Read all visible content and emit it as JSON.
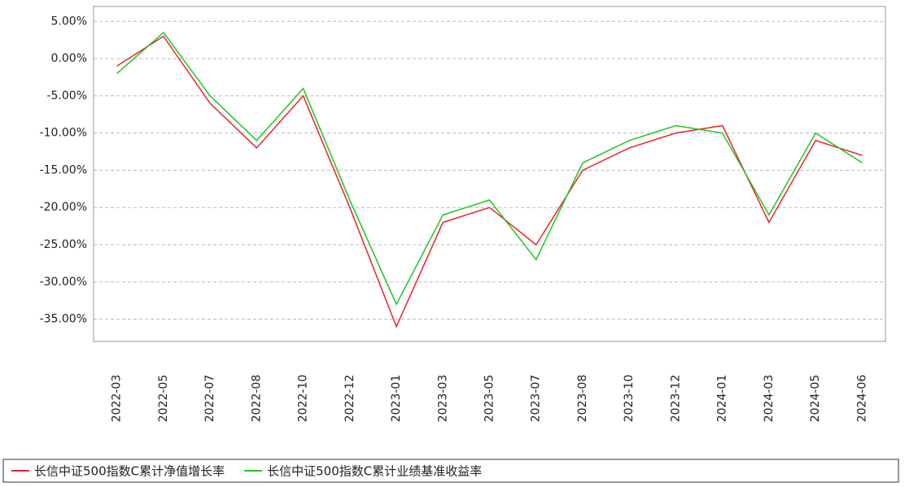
{
  "chart_data": {
    "type": "line",
    "categories": [
      "2022-03",
      "2022-05",
      "2022-07",
      "2022-08",
      "2022-10",
      "2022-12",
      "2023-01",
      "2023-03",
      "2023-05",
      "2023-07",
      "2023-08",
      "2023-10",
      "2023-12",
      "2024-01",
      "2024-03",
      "2024-05",
      "2024-06"
    ],
    "series": [
      {
        "name": "长信中证500指数C累计净值增长率",
        "color": "#e8262b",
        "values": [
          -1,
          3,
          -6,
          -12,
          -5,
          -20,
          -36,
          -22,
          -20,
          -25,
          -15,
          -12,
          -10,
          -9,
          -22,
          -11,
          -13
        ]
      },
      {
        "name": "长信中证500指数C累计业绩基准收益率",
        "color": "#22c422",
        "values": [
          -2,
          3.5,
          -5,
          -11,
          -4,
          -19,
          -33,
          -21,
          -19,
          -27,
          -14,
          -11,
          -9,
          -10,
          -21,
          -10,
          -14
        ]
      }
    ],
    "ylim": [
      -38,
      7
    ],
    "yticks": [
      {
        "value": 5,
        "label": "5.00%"
      },
      {
        "value": 0,
        "label": "0.00%"
      },
      {
        "value": -5,
        "label": "-5.00%"
      },
      {
        "value": -10,
        "label": "-10.00%"
      },
      {
        "value": -15,
        "label": "-15.00%"
      },
      {
        "value": -20,
        "label": "-20.00%"
      },
      {
        "value": -25,
        "label": "-25.00%"
      },
      {
        "value": -30,
        "label": "-30.00%"
      },
      {
        "value": -35,
        "label": "-35.00%"
      }
    ],
    "grid": true
  }
}
